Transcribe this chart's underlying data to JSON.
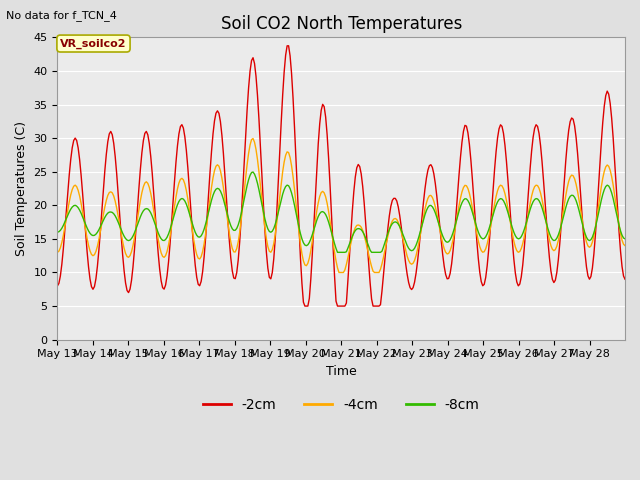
{
  "title": "Soil CO2 North Temperatures",
  "xlabel": "Time",
  "ylabel": "Soil Temperatures (C)",
  "top_left_note": "No data for f_TCN_4",
  "legend_box_label": "VR_soilco2",
  "ylim": [
    0,
    45
  ],
  "yticks": [
    0,
    5,
    10,
    15,
    20,
    25,
    30,
    35,
    40,
    45
  ],
  "colors": {
    "2cm": "#dd0000",
    "4cm": "#ffaa00",
    "8cm": "#33bb00"
  },
  "legend_labels": [
    "-2cm",
    "-4cm",
    "-8cm"
  ],
  "x_tick_labels": [
    "May 13",
    "May 14",
    "May 15",
    "May 16",
    "May 17",
    "May 18",
    "May 19",
    "May 20",
    "May 21",
    "May 22",
    "May 23",
    "May 24",
    "May 25",
    "May 26",
    "May 27",
    "May 28"
  ],
  "background_color": "#e0e0e0",
  "axes_bg_color": "#ebebeb",
  "grid_color": "#ffffff",
  "figsize": [
    6.4,
    4.8
  ],
  "dpi": 100
}
